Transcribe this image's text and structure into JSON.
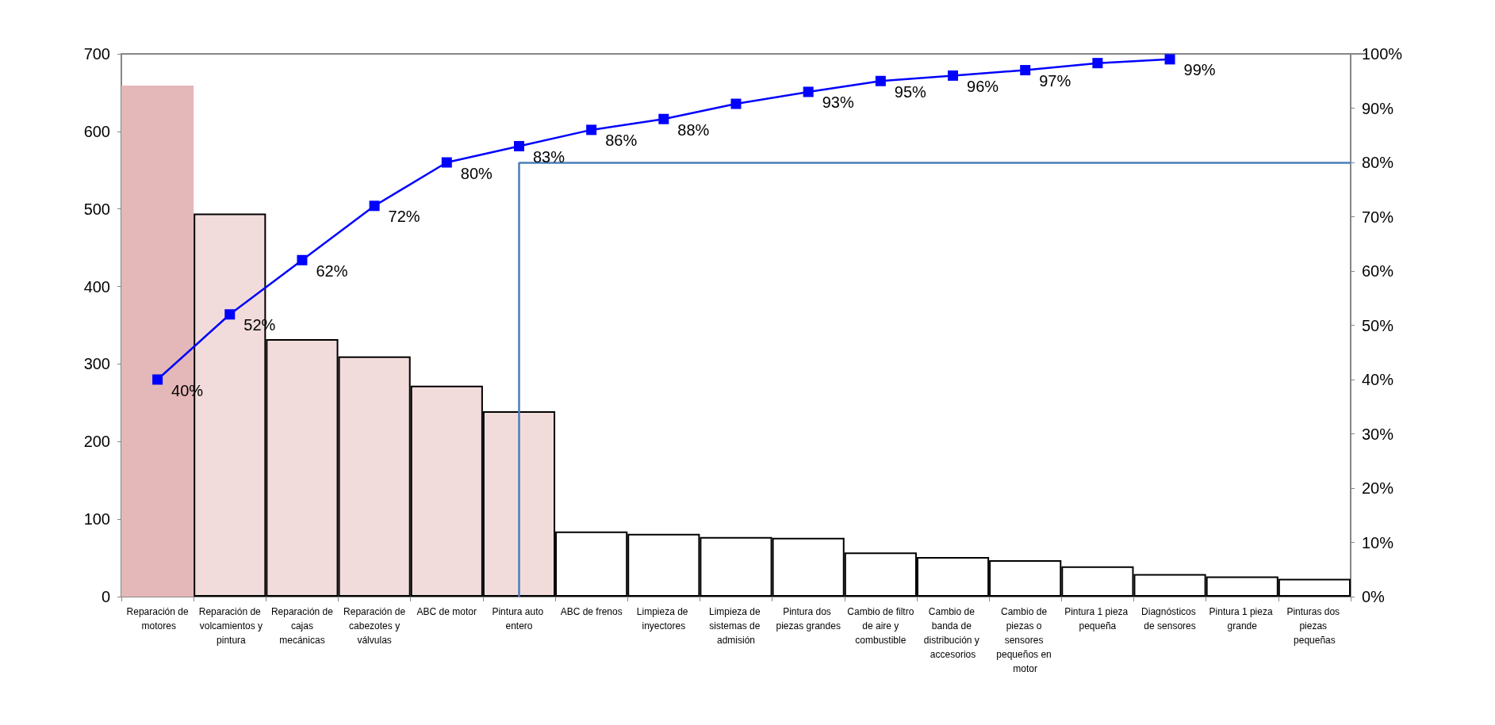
{
  "chart_data": {
    "type": "bar",
    "categories": [
      "Reparación de motores",
      "Reparación de volcamientos y pintura",
      "Reparación de cajas mecánicas",
      "Reparación de cabezotes y válvulas",
      "ABC de motor",
      "Pintura auto entero",
      "ABC de frenos",
      "Limpieza de inyectores",
      "Limpieza de sistemas de admisión",
      "Pintura dos piezas grandes",
      "Cambio de filtro de aire y combustible",
      "Cambio de banda de distribución y accesorios",
      "Cambio de piezas o sensores pequeños en motor",
      "Pintura 1 pieza pequeña",
      "Diagnósticos de sensores",
      "Pintura 1 pieza grande",
      "Pinturas dos piezas pequeñas"
    ],
    "series": [
      {
        "values": [
          659,
          494,
          332,
          310,
          272,
          239,
          84,
          81,
          77,
          76,
          57,
          51,
          47,
          39,
          29,
          26,
          23
        ],
        "colors": [
          "#e4b8b8",
          "#f2dcdb",
          "#f2dcdb",
          "#f2dcdb",
          "#f2dcdb",
          "#f2dcdb",
          "#ffffff",
          "#ffffff",
          "#ffffff",
          "#ffffff",
          "#ffffff",
          "#ffffff",
          "#ffffff",
          "#ffffff",
          "#ffffff",
          "#ffffff",
          "#ffffff"
        ]
      },
      {
        "type": "line",
        "axis": "y2",
        "color": "#0000ff",
        "values": [
          40,
          52,
          62,
          72,
          80,
          83,
          86,
          88,
          90.8,
          93,
          95,
          96,
          97,
          98.3,
          99,
          null,
          null
        ],
        "value_labels": [
          "40%",
          "52%",
          "62%",
          "72%",
          "80%",
          "83%",
          "86%",
          "88%",
          null,
          "93%",
          "95%",
          "96%",
          "97%",
          null,
          "99%",
          null,
          null
        ],
        "marker": "square"
      }
    ],
    "ylim": [
      0,
      700
    ],
    "yticks": [
      0,
      100,
      200,
      300,
      400,
      500,
      600,
      700
    ],
    "y2lim": [
      0,
      100
    ],
    "y2ticks": [
      {
        "value": 0,
        "label": "0%"
      },
      {
        "value": 10,
        "label": "10%"
      },
      {
        "value": 20,
        "label": "20%"
      },
      {
        "value": 30,
        "label": "30%"
      },
      {
        "value": 40,
        "label": "40%"
      },
      {
        "value": 50,
        "label": "50%"
      },
      {
        "value": 60,
        "label": "60%"
      },
      {
        "value": 70,
        "label": "70%"
      },
      {
        "value": 80,
        "label": "80%"
      },
      {
        "value": 90,
        "label": "90%"
      },
      {
        "value": 100,
        "label": "100%"
      }
    ],
    "ref_lines": [
      {
        "axis": "x",
        "value": "Pintura auto entero",
        "color": "#4a7ebb"
      },
      {
        "axis": "y2",
        "value": 80,
        "color": "#4a7ebb"
      }
    ],
    "grid": false
  }
}
